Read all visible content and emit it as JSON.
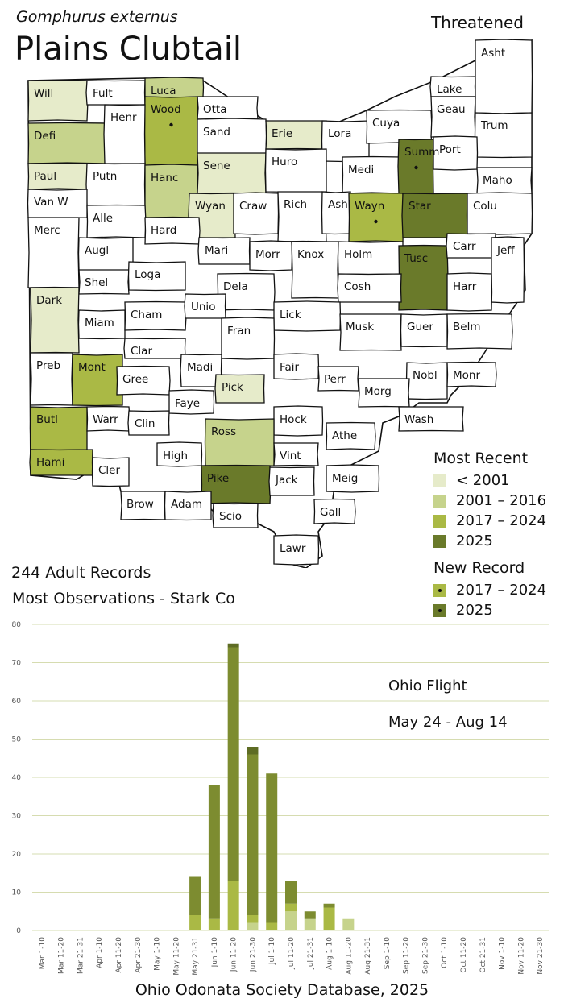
{
  "header": {
    "scientific_name": "Gomphurus externus",
    "common_name": "Plains Clubtail",
    "status": "Threatened"
  },
  "stats": {
    "records": "244 Adult Records",
    "most_observations": "Most Observations - Stark Co"
  },
  "footer": "Ohio Odonata Society Database, 2025",
  "colors": {
    "lt2001": "#e6ebca",
    "c2001_2016": "#c6d38c",
    "c2017_2024": "#aab945",
    "c2025": "#6a7a2a",
    "none": "#ffffff"
  },
  "legend": {
    "most_recent_title": "Most Recent",
    "most_recent": [
      {
        "label": "< 2001",
        "class": "lt2001"
      },
      {
        "label": "2001 – 2016",
        "class": "c2001_2016"
      },
      {
        "label": "2017 – 2024",
        "class": "c2017_2024"
      },
      {
        "label": "2025",
        "class": "c2025"
      }
    ],
    "new_record_title": "New Record",
    "new_record": [
      {
        "label": "2017 – 2024",
        "class": "c2017_2024"
      },
      {
        "label": "2025",
        "class": "c2025"
      }
    ]
  },
  "map": {
    "counties": [
      {
        "name": "Will",
        "cls": "lt2001"
      },
      {
        "name": "Fult",
        "cls": "none"
      },
      {
        "name": "Luca",
        "cls": "c2001_2016"
      },
      {
        "name": "Otta",
        "cls": "none"
      },
      {
        "name": "Wood",
        "cls": "c2017_2024",
        "new": true
      },
      {
        "name": "Defi",
        "cls": "c2001_2016"
      },
      {
        "name": "Henr",
        "cls": "none"
      },
      {
        "name": "Sand",
        "cls": "none"
      },
      {
        "name": "Erie",
        "cls": "lt2001"
      },
      {
        "name": "Lora",
        "cls": "none"
      },
      {
        "name": "Cuya",
        "cls": "none"
      },
      {
        "name": "Lake",
        "cls": "none"
      },
      {
        "name": "Asht",
        "cls": "none"
      },
      {
        "name": "Geau",
        "cls": "none"
      },
      {
        "name": "Trum",
        "cls": "none"
      },
      {
        "name": "Paul",
        "cls": "lt2001"
      },
      {
        "name": "Putn",
        "cls": "none"
      },
      {
        "name": "Hanc",
        "cls": "c2001_2016"
      },
      {
        "name": "Sene",
        "cls": "lt2001"
      },
      {
        "name": "Huro",
        "cls": "none"
      },
      {
        "name": "Medi",
        "cls": "none"
      },
      {
        "name": "Summ",
        "cls": "c2025",
        "new": true
      },
      {
        "name": "Port",
        "cls": "none"
      },
      {
        "name": "Maho",
        "cls": "none"
      },
      {
        "name": "Van W",
        "cls": "none"
      },
      {
        "name": "Alle",
        "cls": "none"
      },
      {
        "name": "Wyan",
        "cls": "lt2001"
      },
      {
        "name": "Craw",
        "cls": "none"
      },
      {
        "name": "Rich",
        "cls": "none"
      },
      {
        "name": "Ashl",
        "cls": "none"
      },
      {
        "name": "Wayn",
        "cls": "c2017_2024",
        "new": true
      },
      {
        "name": "Star",
        "cls": "c2025"
      },
      {
        "name": "Colu",
        "cls": "none"
      },
      {
        "name": "Merc",
        "cls": "none"
      },
      {
        "name": "Augl",
        "cls": "none"
      },
      {
        "name": "Hard",
        "cls": "none"
      },
      {
        "name": "Mari",
        "cls": "none"
      },
      {
        "name": "Morr",
        "cls": "none"
      },
      {
        "name": "Knox",
        "cls": "none"
      },
      {
        "name": "Holm",
        "cls": "none"
      },
      {
        "name": "Tusc",
        "cls": "c2025"
      },
      {
        "name": "Carr",
        "cls": "none"
      },
      {
        "name": "Jeff",
        "cls": "none"
      },
      {
        "name": "Shel",
        "cls": "none"
      },
      {
        "name": "Loga",
        "cls": "none"
      },
      {
        "name": "Dela",
        "cls": "none"
      },
      {
        "name": "Cosh",
        "cls": "none"
      },
      {
        "name": "Harr",
        "cls": "none"
      },
      {
        "name": "Dark",
        "cls": "lt2001"
      },
      {
        "name": "Miam",
        "cls": "none"
      },
      {
        "name": "Cham",
        "cls": "none"
      },
      {
        "name": "Unio",
        "cls": "none"
      },
      {
        "name": "Lick",
        "cls": "none"
      },
      {
        "name": "Musk",
        "cls": "none"
      },
      {
        "name": "Guer",
        "cls": "none"
      },
      {
        "name": "Belm",
        "cls": "none"
      },
      {
        "name": "Clar",
        "cls": "none"
      },
      {
        "name": "Fran",
        "cls": "none"
      },
      {
        "name": "Preb",
        "cls": "none"
      },
      {
        "name": "Mont",
        "cls": "c2017_2024"
      },
      {
        "name": "Gree",
        "cls": "none"
      },
      {
        "name": "Madi",
        "cls": "none"
      },
      {
        "name": "Fair",
        "cls": "none"
      },
      {
        "name": "Perr",
        "cls": "none"
      },
      {
        "name": "Nobl",
        "cls": "none"
      },
      {
        "name": "Monr",
        "cls": "none"
      },
      {
        "name": "Pick",
        "cls": "lt2001"
      },
      {
        "name": "Faye",
        "cls": "none"
      },
      {
        "name": "Morg",
        "cls": "none"
      },
      {
        "name": "Butl",
        "cls": "c2017_2024"
      },
      {
        "name": "Warr",
        "cls": "none"
      },
      {
        "name": "Clin",
        "cls": "none"
      },
      {
        "name": "Hock",
        "cls": "none"
      },
      {
        "name": "Wash",
        "cls": "none"
      },
      {
        "name": "Ross",
        "cls": "c2001_2016"
      },
      {
        "name": "Athe",
        "cls": "none"
      },
      {
        "name": "Hami",
        "cls": "c2017_2024"
      },
      {
        "name": "High",
        "cls": "none"
      },
      {
        "name": "Vint",
        "cls": "none"
      },
      {
        "name": "Cler",
        "cls": "none"
      },
      {
        "name": "Pike",
        "cls": "c2025"
      },
      {
        "name": "Jack",
        "cls": "none"
      },
      {
        "name": "Meig",
        "cls": "none"
      },
      {
        "name": "Brow",
        "cls": "none"
      },
      {
        "name": "Adam",
        "cls": "none"
      },
      {
        "name": "Gall",
        "cls": "none"
      },
      {
        "name": "Scio",
        "cls": "none"
      },
      {
        "name": "Lawr",
        "cls": "none"
      }
    ]
  },
  "chart_data": {
    "type": "bar",
    "stacked": true,
    "categories": [
      "Mar 1-10",
      "Mar 11-20",
      "Mar 21-31",
      "Apr 1-10",
      "Apr 11-20",
      "Apr 21-30",
      "May 1-10",
      "May 11-20",
      "May 21-31",
      "Jun 1-10",
      "Jun 11-20",
      "Jun 21-30",
      "Jul 1-10",
      "Jul 11-20",
      "Jul 21-31",
      "Aug 1-10",
      "Aug 11-20",
      "Aug 21-31",
      "Sep 1-10",
      "Sep 11-20",
      "Sep 21-30",
      "Oct 1-10",
      "Oct 11-20",
      "Oct 21-31",
      "Nov 1-10",
      "Nov 11-20",
      "Nov 21-30"
    ],
    "series": [
      {
        "color": "#c6d38c",
        "values": [
          0,
          0,
          0,
          0,
          0,
          0,
          0,
          0,
          0,
          0,
          0,
          2,
          0,
          5,
          3,
          0,
          3,
          0,
          0,
          0,
          0,
          0,
          0,
          0,
          0,
          0,
          0
        ]
      },
      {
        "color": "#aab945",
        "values": [
          0,
          0,
          0,
          0,
          0,
          0,
          0,
          0,
          4,
          3,
          13,
          2,
          2,
          2,
          0,
          6,
          0,
          0,
          0,
          0,
          0,
          0,
          0,
          0,
          0,
          0,
          0
        ]
      },
      {
        "color": "#7d8c30",
        "values": [
          0,
          0,
          0,
          0,
          0,
          0,
          0,
          0,
          10,
          35,
          61,
          42,
          39,
          6,
          2,
          1,
          0,
          0,
          0,
          0,
          0,
          0,
          0,
          0,
          0,
          0,
          0
        ]
      },
      {
        "color": "#5e6c24",
        "values": [
          0,
          0,
          0,
          0,
          0,
          0,
          0,
          0,
          0,
          0,
          1,
          2,
          0,
          0,
          0,
          0,
          0,
          0,
          0,
          0,
          0,
          0,
          0,
          0,
          0,
          0,
          0
        ]
      }
    ],
    "ylim": [
      0,
      80
    ],
    "yticks": [
      0,
      10,
      20,
      30,
      40,
      50,
      60,
      70,
      80
    ],
    "grid": true,
    "annotations": [
      "Ohio Flight",
      "May 24 - Aug 14"
    ]
  }
}
